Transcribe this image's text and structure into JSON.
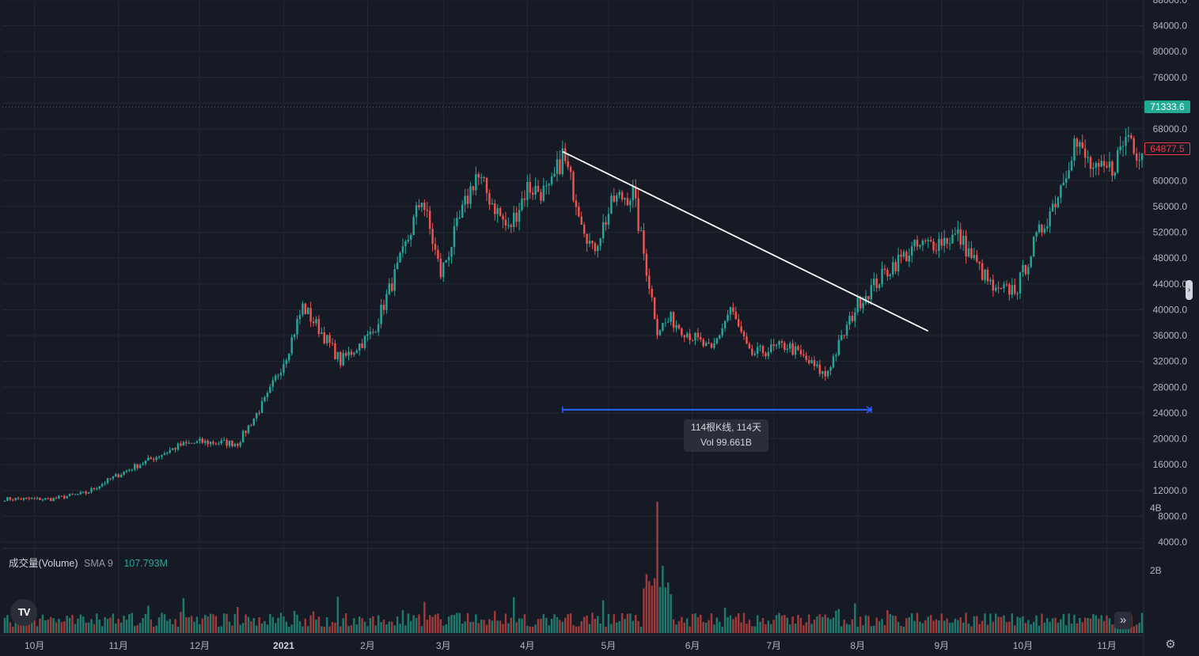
{
  "chart_data": {
    "type": "candlestick",
    "price_axis": {
      "ticks": [
        4000,
        8000,
        12000,
        16000,
        20000,
        24000,
        28000,
        32000,
        36000,
        40000,
        44000,
        48000,
        52000,
        56000,
        60000,
        64000,
        68000,
        72000,
        76000,
        80000,
        84000,
        88000
      ],
      "tick_labels": [
        "4000.0",
        "8000.0",
        "12000.0",
        "16000.0",
        "20000.0",
        "24000.0",
        "28000.0",
        "32000.0",
        "36000.0",
        "40000.0",
        "44000.0",
        "48000.0",
        "52000.0",
        "56000.0",
        "60000.0",
        "",
        "68000.0",
        "",
        "76000.0",
        "80000.0",
        "84000.0",
        "88000.0"
      ],
      "range": [
        4000,
        88000
      ]
    },
    "volume_axis": {
      "ticks": [
        2,
        4
      ],
      "tick_labels": [
        "2B",
        "4B"
      ],
      "unit": "B"
    },
    "time_axis": {
      "labels": [
        "10月",
        "11月",
        "12月",
        "2021",
        "2月",
        "3月",
        "4月",
        "5月",
        "6月",
        "7月",
        "8月",
        "9月",
        "10月",
        "11月"
      ],
      "bold": [
        false,
        false,
        false,
        true,
        false,
        false,
        false,
        false,
        false,
        false,
        false,
        false,
        false,
        false
      ],
      "start": "2020-09-20",
      "end": "2021-11-14",
      "tick_dates": [
        "2020-10-01",
        "2020-11-01",
        "2020-12-01",
        "2021-01-01",
        "2021-02-01",
        "2021-03-01",
        "2021-04-01",
        "2021-05-01",
        "2021-06-01",
        "2021-07-01",
        "2021-08-01",
        "2021-09-01",
        "2021-10-01",
        "2021-11-01"
      ]
    },
    "price_anchors": [
      [
        "2020-09-20",
        10700
      ],
      [
        "2020-10-07",
        10650
      ],
      [
        "2020-10-20",
        11600
      ],
      [
        "2020-10-27",
        13300
      ],
      [
        "2020-11-06",
        15500
      ],
      [
        "2020-11-24",
        19000
      ],
      [
        "2020-12-01",
        19500
      ],
      [
        "2020-12-15",
        19300
      ],
      [
        "2020-12-26",
        26500
      ],
      [
        "2021-01-02",
        33000
      ],
      [
        "2021-01-08",
        40500
      ],
      [
        "2021-01-15",
        36500
      ],
      [
        "2021-01-22",
        32000
      ],
      [
        "2021-02-03",
        36500
      ],
      [
        "2021-02-14",
        48500
      ],
      [
        "2021-02-21",
        57500
      ],
      [
        "2021-02-28",
        45500
      ],
      [
        "2021-03-13",
        61000
      ],
      [
        "2021-03-25",
        52300
      ],
      [
        "2021-04-01",
        59000
      ],
      [
        "2021-04-09",
        58000
      ],
      [
        "2021-04-14",
        64000
      ],
      [
        "2021-04-25",
        49000
      ],
      [
        "2021-05-03",
        57000
      ],
      [
        "2021-05-10",
        58000
      ],
      [
        "2021-05-19",
        37000
      ],
      [
        "2021-05-24",
        38500
      ],
      [
        "2021-06-08",
        33500
      ],
      [
        "2021-06-15",
        40200
      ],
      [
        "2021-06-22",
        33000
      ],
      [
        "2021-07-06",
        34500
      ],
      [
        "2021-07-20",
        29800
      ],
      [
        "2021-08-01",
        41000
      ],
      [
        "2021-08-14",
        47000
      ],
      [
        "2021-08-22",
        49500
      ],
      [
        "2021-09-07",
        51500
      ],
      [
        "2021-09-21",
        42500
      ],
      [
        "2021-09-29",
        43500
      ],
      [
        "2021-10-05",
        50000
      ],
      [
        "2021-10-14",
        58000
      ],
      [
        "2021-10-20",
        66000
      ],
      [
        "2021-10-28",
        61000
      ],
      [
        "2021-11-03",
        62000
      ],
      [
        "2021-11-09",
        67500
      ],
      [
        "2021-11-12",
        64800
      ]
    ],
    "volume_peak": {
      "date": "2021-05-19",
      "value": 4.2
    },
    "trendline": {
      "start": [
        "2021-04-14",
        64500
      ],
      "end": [
        "2021-08-27",
        36700
      ],
      "color": "#ffffff"
    },
    "measure_range": {
      "start_date": "2021-04-14",
      "end_date": "2021-08-06",
      "price": 24500,
      "color": "#2962ff"
    },
    "last_price_line": 71333.6,
    "colors": {
      "up": "#26a69a",
      "down": "#ef5350",
      "up_volume": "#1f7a6d",
      "down_volume": "#9e3b3b",
      "grid": "#242833",
      "background": "#161a25"
    }
  },
  "legend": {
    "name": "成交量(Volume)",
    "sma": "SMA 9",
    "value": "107.793M"
  },
  "tooltip": {
    "line1": "114根K线, 114天",
    "line2": "Vol 99.661B"
  },
  "price_tags": {
    "last": "71333.6",
    "current": "64877.5"
  },
  "logo_text": "TV",
  "icons": {
    "scroll": "chevron-double-right-icon",
    "settings": "gear-icon",
    "handle": "chevron-right-icon"
  }
}
